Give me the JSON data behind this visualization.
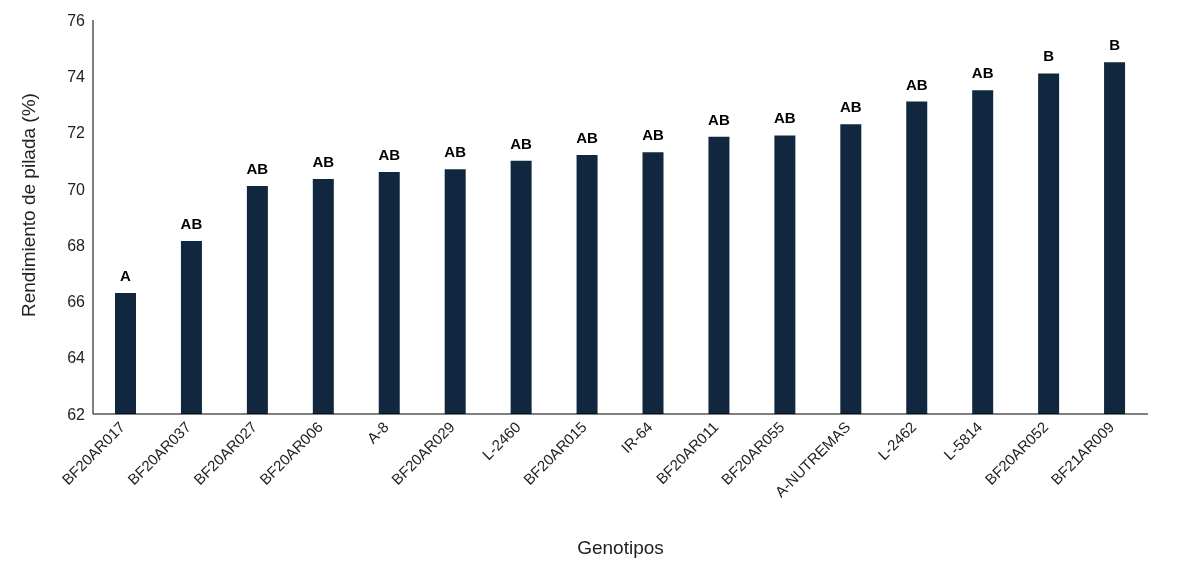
{
  "chart_data": {
    "type": "bar",
    "xlabel": "Genotipos",
    "ylabel": "Rendimiento de pilada (%)",
    "categories": [
      "BF20AR017",
      "BF20AR037",
      "BF20AR027",
      "BF20AR006",
      "A-8",
      "BF20AR029",
      "L-2460",
      "BF20AR015",
      "IR-64",
      "BF20AR011",
      "BF20AR055",
      "A-NUTREMAS",
      "L-2462",
      "L-5814",
      "BF20AR052",
      "BF21AR009"
    ],
    "values": [
      66.3,
      68.15,
      70.1,
      70.35,
      70.6,
      70.7,
      71.0,
      71.2,
      71.3,
      71.85,
      71.9,
      72.3,
      73.1,
      73.5,
      74.1,
      74.5
    ],
    "value_labels": [
      "A",
      "AB",
      "AB",
      "AB",
      "AB",
      "AB",
      "AB",
      "AB",
      "AB",
      "AB",
      "AB",
      "AB",
      "AB",
      "AB",
      "B",
      "B"
    ],
    "color": "#10273f",
    "ylim": [
      62,
      76
    ],
    "yticks": [
      62,
      64,
      66,
      68,
      70,
      72,
      74,
      76
    ],
    "grid": false
  }
}
